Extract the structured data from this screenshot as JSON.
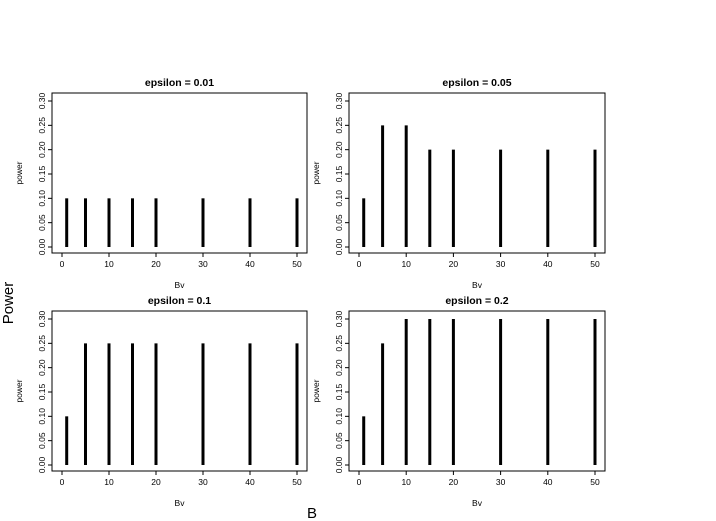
{
  "figure": {
    "outer_xlabel": "B",
    "outer_ylabel": "Power"
  },
  "chart_data": [
    {
      "type": "bar",
      "title": "epsilon = 0.01",
      "xlabel": "Bv",
      "ylabel": "power",
      "x": [
        1,
        5,
        10,
        15,
        20,
        30,
        40,
        50
      ],
      "values": [
        0.1,
        0.1,
        0.1,
        0.1,
        0.1,
        0.1,
        0.1,
        0.1
      ],
      "xticks": [
        "0",
        "10",
        "20",
        "30",
        "40",
        "50"
      ],
      "yticks": [
        "0.00",
        "0.05",
        "0.10",
        "0.15",
        "0.20",
        "0.25",
        "0.30"
      ],
      "xlim": [
        0,
        50
      ],
      "ylim": [
        0,
        0.3
      ],
      "grid": false
    },
    {
      "type": "bar",
      "title": "epsilon = 0.05",
      "xlabel": "Bv",
      "ylabel": "power",
      "x": [
        1,
        5,
        10,
        15,
        20,
        30,
        40,
        50
      ],
      "values": [
        0.1,
        0.25,
        0.25,
        0.2,
        0.2,
        0.2,
        0.2,
        0.2
      ],
      "xticks": [
        "0",
        "10",
        "20",
        "30",
        "40",
        "50"
      ],
      "yticks": [
        "0.00",
        "0.05",
        "0.10",
        "0.15",
        "0.20",
        "0.25",
        "0.30"
      ],
      "xlim": [
        0,
        50
      ],
      "ylim": [
        0,
        0.3
      ],
      "grid": false
    },
    {
      "type": "bar",
      "title": "epsilon = 0.1",
      "xlabel": "Bv",
      "ylabel": "power",
      "x": [
        1,
        5,
        10,
        15,
        20,
        30,
        40,
        50
      ],
      "values": [
        0.1,
        0.25,
        0.25,
        0.25,
        0.25,
        0.25,
        0.25,
        0.25
      ],
      "xticks": [
        "0",
        "10",
        "20",
        "30",
        "40",
        "50"
      ],
      "yticks": [
        "0.00",
        "0.05",
        "0.10",
        "0.15",
        "0.20",
        "0.25",
        "0.30"
      ],
      "xlim": [
        0,
        50
      ],
      "ylim": [
        0,
        0.3
      ],
      "grid": false
    },
    {
      "type": "bar",
      "title": "epsilon = 0.2",
      "xlabel": "Bv",
      "ylabel": "power",
      "x": [
        1,
        5,
        10,
        15,
        20,
        30,
        40,
        50
      ],
      "values": [
        0.1,
        0.25,
        0.3,
        0.3,
        0.3,
        0.3,
        0.3,
        0.3
      ],
      "xticks": [
        "0",
        "10",
        "20",
        "30",
        "40",
        "50"
      ],
      "yticks": [
        "0.00",
        "0.05",
        "0.10",
        "0.15",
        "0.20",
        "0.25",
        "0.30"
      ],
      "xlim": [
        0,
        50
      ],
      "ylim": [
        0,
        0.3
      ],
      "grid": false
    }
  ]
}
